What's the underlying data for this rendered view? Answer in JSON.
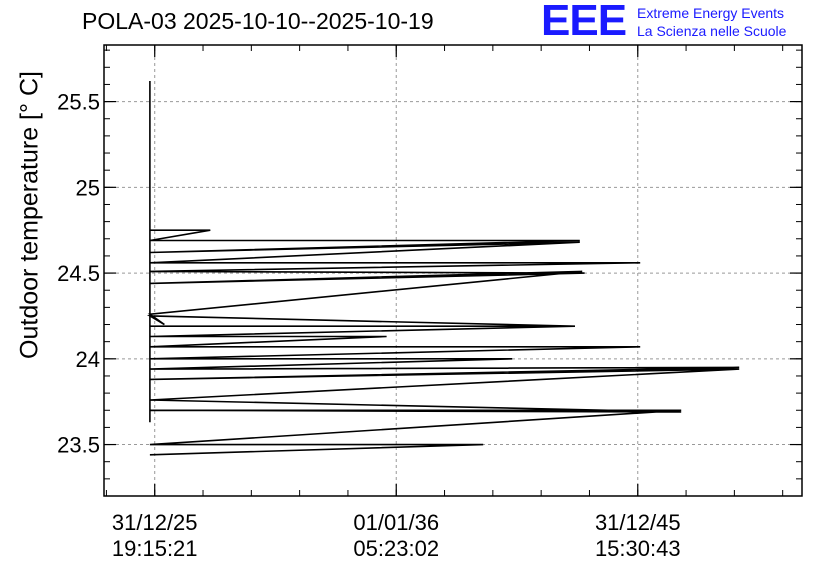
{
  "header": {
    "title": "POLA-03 2025-10-10--2025-10-19",
    "logo_text": "EEE",
    "org_line1": "Extreme Energy Events",
    "org_line2": "La Scienza nelle Scuole"
  },
  "colors": {
    "brand": "#1a1aff",
    "line": "#000000",
    "grid": "#999999"
  },
  "chart_data": {
    "type": "line",
    "title": "POLA-03 2025-10-10--2025-10-19",
    "ylabel": "Outdoor temperature [° C]",
    "xlabel": "",
    "ylim": [
      23.2,
      25.83
    ],
    "yticks": [
      23.5,
      24,
      24.5,
      25,
      25.5
    ],
    "ytick_labels": [
      "23.5",
      "24",
      "24.5",
      "25",
      "25.5"
    ],
    "xlim": [
      -0.21,
      2.68
    ],
    "xticks": [
      0,
      1,
      2
    ],
    "xtick_labels": [
      [
        "31/12/25",
        "19:15:21"
      ],
      [
        "01/01/36",
        "05:23:02"
      ],
      [
        "31/12/45",
        "15:30:43"
      ]
    ],
    "grid": true,
    "series": [
      {
        "name": "Outdoor temperature",
        "points": [
          [
            -0.02,
            25.62
          ],
          [
            -0.02,
            23.63
          ],
          [
            -0.02,
            24.75
          ],
          [
            0.23,
            24.75
          ],
          [
            -0.02,
            24.69
          ],
          [
            1.76,
            24.69
          ],
          [
            -0.02,
            24.62
          ],
          [
            1.76,
            24.68
          ],
          [
            -0.02,
            24.56
          ],
          [
            2.01,
            24.56
          ],
          [
            -0.02,
            24.51
          ],
          [
            1.78,
            24.5
          ],
          [
            -0.02,
            24.44
          ],
          [
            1.77,
            24.51
          ],
          [
            -0.02,
            24.26
          ],
          [
            0.04,
            24.2
          ],
          [
            -0.02,
            24.25
          ],
          [
            1.74,
            24.19
          ],
          [
            -0.02,
            24.19
          ],
          [
            1.74,
            24.19
          ],
          [
            -0.02,
            24.13
          ],
          [
            0.96,
            24.13
          ],
          [
            -0.02,
            24.07
          ],
          [
            2.01,
            24.07
          ],
          [
            -0.02,
            24.0
          ],
          [
            1.48,
            24.0
          ],
          [
            -0.02,
            23.94
          ],
          [
            2.42,
            23.95
          ],
          [
            -0.02,
            23.88
          ],
          [
            2.42,
            23.94
          ],
          [
            -0.02,
            23.76
          ],
          [
            2.18,
            23.69
          ],
          [
            -0.02,
            23.7
          ],
          [
            2.18,
            23.7
          ],
          [
            -0.02,
            23.5
          ],
          [
            1.36,
            23.5
          ],
          [
            -0.02,
            23.44
          ]
        ]
      }
    ]
  }
}
